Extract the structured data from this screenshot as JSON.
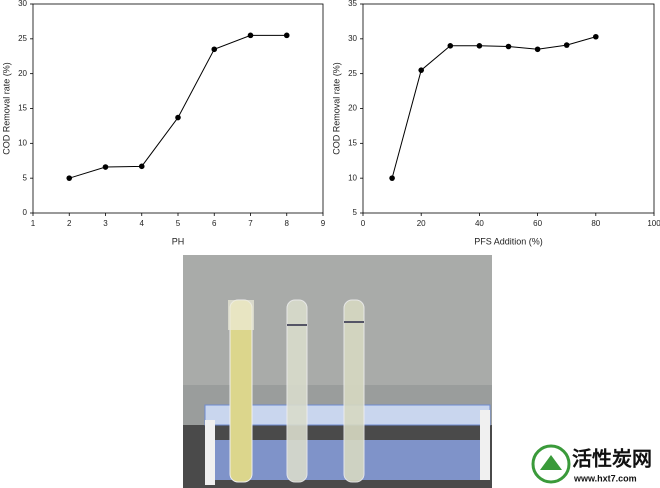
{
  "chart_data": [
    {
      "type": "line",
      "xlabel": "PH",
      "ylabel": "COD Removal rate (%)",
      "x": [
        2,
        3,
        4,
        5,
        6,
        7,
        8
      ],
      "values": [
        5.0,
        6.6,
        6.7,
        13.7,
        23.5,
        25.5,
        25.5
      ],
      "color": "#000000",
      "xlim": [
        1,
        9
      ],
      "xticks": [
        1,
        2,
        3,
        4,
        5,
        6,
        7,
        8,
        9
      ],
      "ylim": [
        0,
        30
      ],
      "yticks": [
        0,
        5,
        10,
        15,
        20,
        25,
        30
      ]
    },
    {
      "type": "line",
      "xlabel": "PFS Addition (%)",
      "ylabel": "COD Removal rate (%)",
      "x": [
        10,
        20,
        30,
        40,
        50,
        60,
        70,
        80
      ],
      "values": [
        10.0,
        25.5,
        29.0,
        29.0,
        28.9,
        28.5,
        29.1,
        30.3
      ],
      "color": "#000000",
      "xlim": [
        0,
        100
      ],
      "xticks": [
        0,
        20,
        40,
        60,
        80,
        100
      ],
      "ylim": [
        5,
        35
      ],
      "yticks": [
        5,
        10,
        15,
        20,
        25,
        30,
        35
      ]
    }
  ],
  "watermark": {
    "title": "活性炭网",
    "url": "www.hxt7.com"
  }
}
